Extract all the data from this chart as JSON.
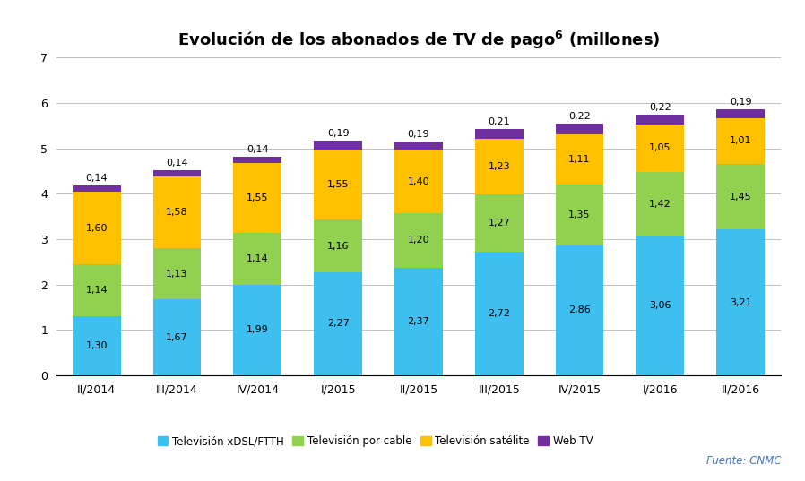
{
  "categories": [
    "II/2014",
    "III/2014",
    "IV/2014",
    "I/2015",
    "II/2015",
    "III/2015",
    "IV/2015",
    "I/2016",
    "II/2016"
  ],
  "xdsl": [
    1.3,
    1.67,
    1.99,
    2.27,
    2.37,
    2.72,
    2.86,
    3.06,
    3.21
  ],
  "cable": [
    1.14,
    1.13,
    1.14,
    1.16,
    1.2,
    1.27,
    1.35,
    1.42,
    1.45
  ],
  "satelite": [
    1.6,
    1.58,
    1.55,
    1.55,
    1.4,
    1.23,
    1.11,
    1.05,
    1.01
  ],
  "webtv": [
    0.14,
    0.14,
    0.14,
    0.19,
    0.19,
    0.21,
    0.22,
    0.22,
    0.19
  ],
  "color_xdsl": "#3DBFEF",
  "color_cable": "#92D050",
  "color_satelite": "#FFC000",
  "color_webtv": "#7030A0",
  "title_main": "Evolución de los abonados de TV de pago",
  "title_super": "6",
  "title_suffix": " (millones)",
  "legend_xdsl": "Televisión xDSL/FTTH",
  "legend_cable": "Televisión por cable",
  "legend_satelite": "Televisión satélite",
  "legend_webtv": "Web TV",
  "source_text": "Fuente: CNMC",
  "ylim": [
    0,
    7
  ],
  "yticks": [
    0,
    1,
    2,
    3,
    4,
    5,
    6,
    7
  ],
  "background_color": "#FFFFFF",
  "grid_color": "#C0C0C0",
  "webtv_label_show": [
    false,
    false,
    true,
    true,
    true,
    true,
    true,
    true,
    true
  ]
}
